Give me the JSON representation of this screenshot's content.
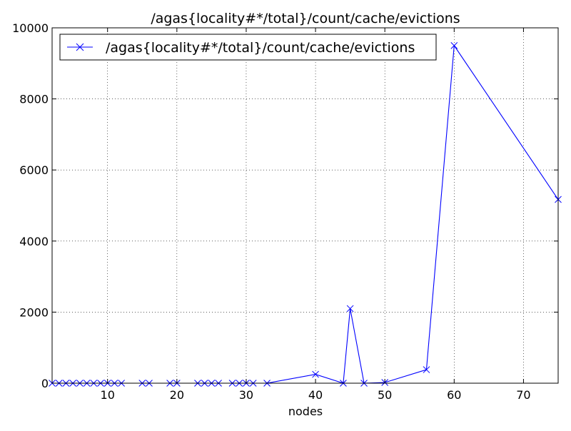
{
  "chart_data": {
    "type": "line",
    "title": "/agas{locality#*/total}/count/cache/evictions",
    "xlabel": "nodes",
    "ylabel": "",
    "xlim": [
      2,
      75
    ],
    "ylim": [
      0,
      10000
    ],
    "x_ticks": [
      10,
      20,
      30,
      40,
      50,
      60,
      70
    ],
    "x_tick_labels": [
      "10",
      "20",
      "30",
      "40",
      "50",
      "60",
      "70"
    ],
    "y_ticks": [
      0,
      2000,
      4000,
      6000,
      8000,
      10000
    ],
    "y_tick_labels": [
      "0",
      "2000",
      "4000",
      "6000",
      "8000",
      "10000"
    ],
    "grid": true,
    "legend": "top-left",
    "series": [
      {
        "name": "/agas{locality#*/total}/count/cache/evictions",
        "color": "#0000ff",
        "marker": "x",
        "x": [
          2,
          3,
          4,
          5,
          6,
          7,
          8,
          9,
          10,
          11,
          12,
          15,
          16,
          19,
          20,
          23,
          24,
          25,
          26,
          28,
          29,
          30,
          31,
          33,
          40,
          44,
          45,
          47,
          50,
          56,
          60,
          75
        ],
        "y": [
          0,
          0,
          0,
          0,
          0,
          0,
          0,
          0,
          0,
          0,
          0,
          0,
          0,
          0,
          0,
          0,
          0,
          0,
          0,
          0,
          0,
          0,
          0,
          0,
          250,
          0,
          2100,
          0,
          20,
          380,
          9500,
          5170
        ]
      }
    ]
  }
}
